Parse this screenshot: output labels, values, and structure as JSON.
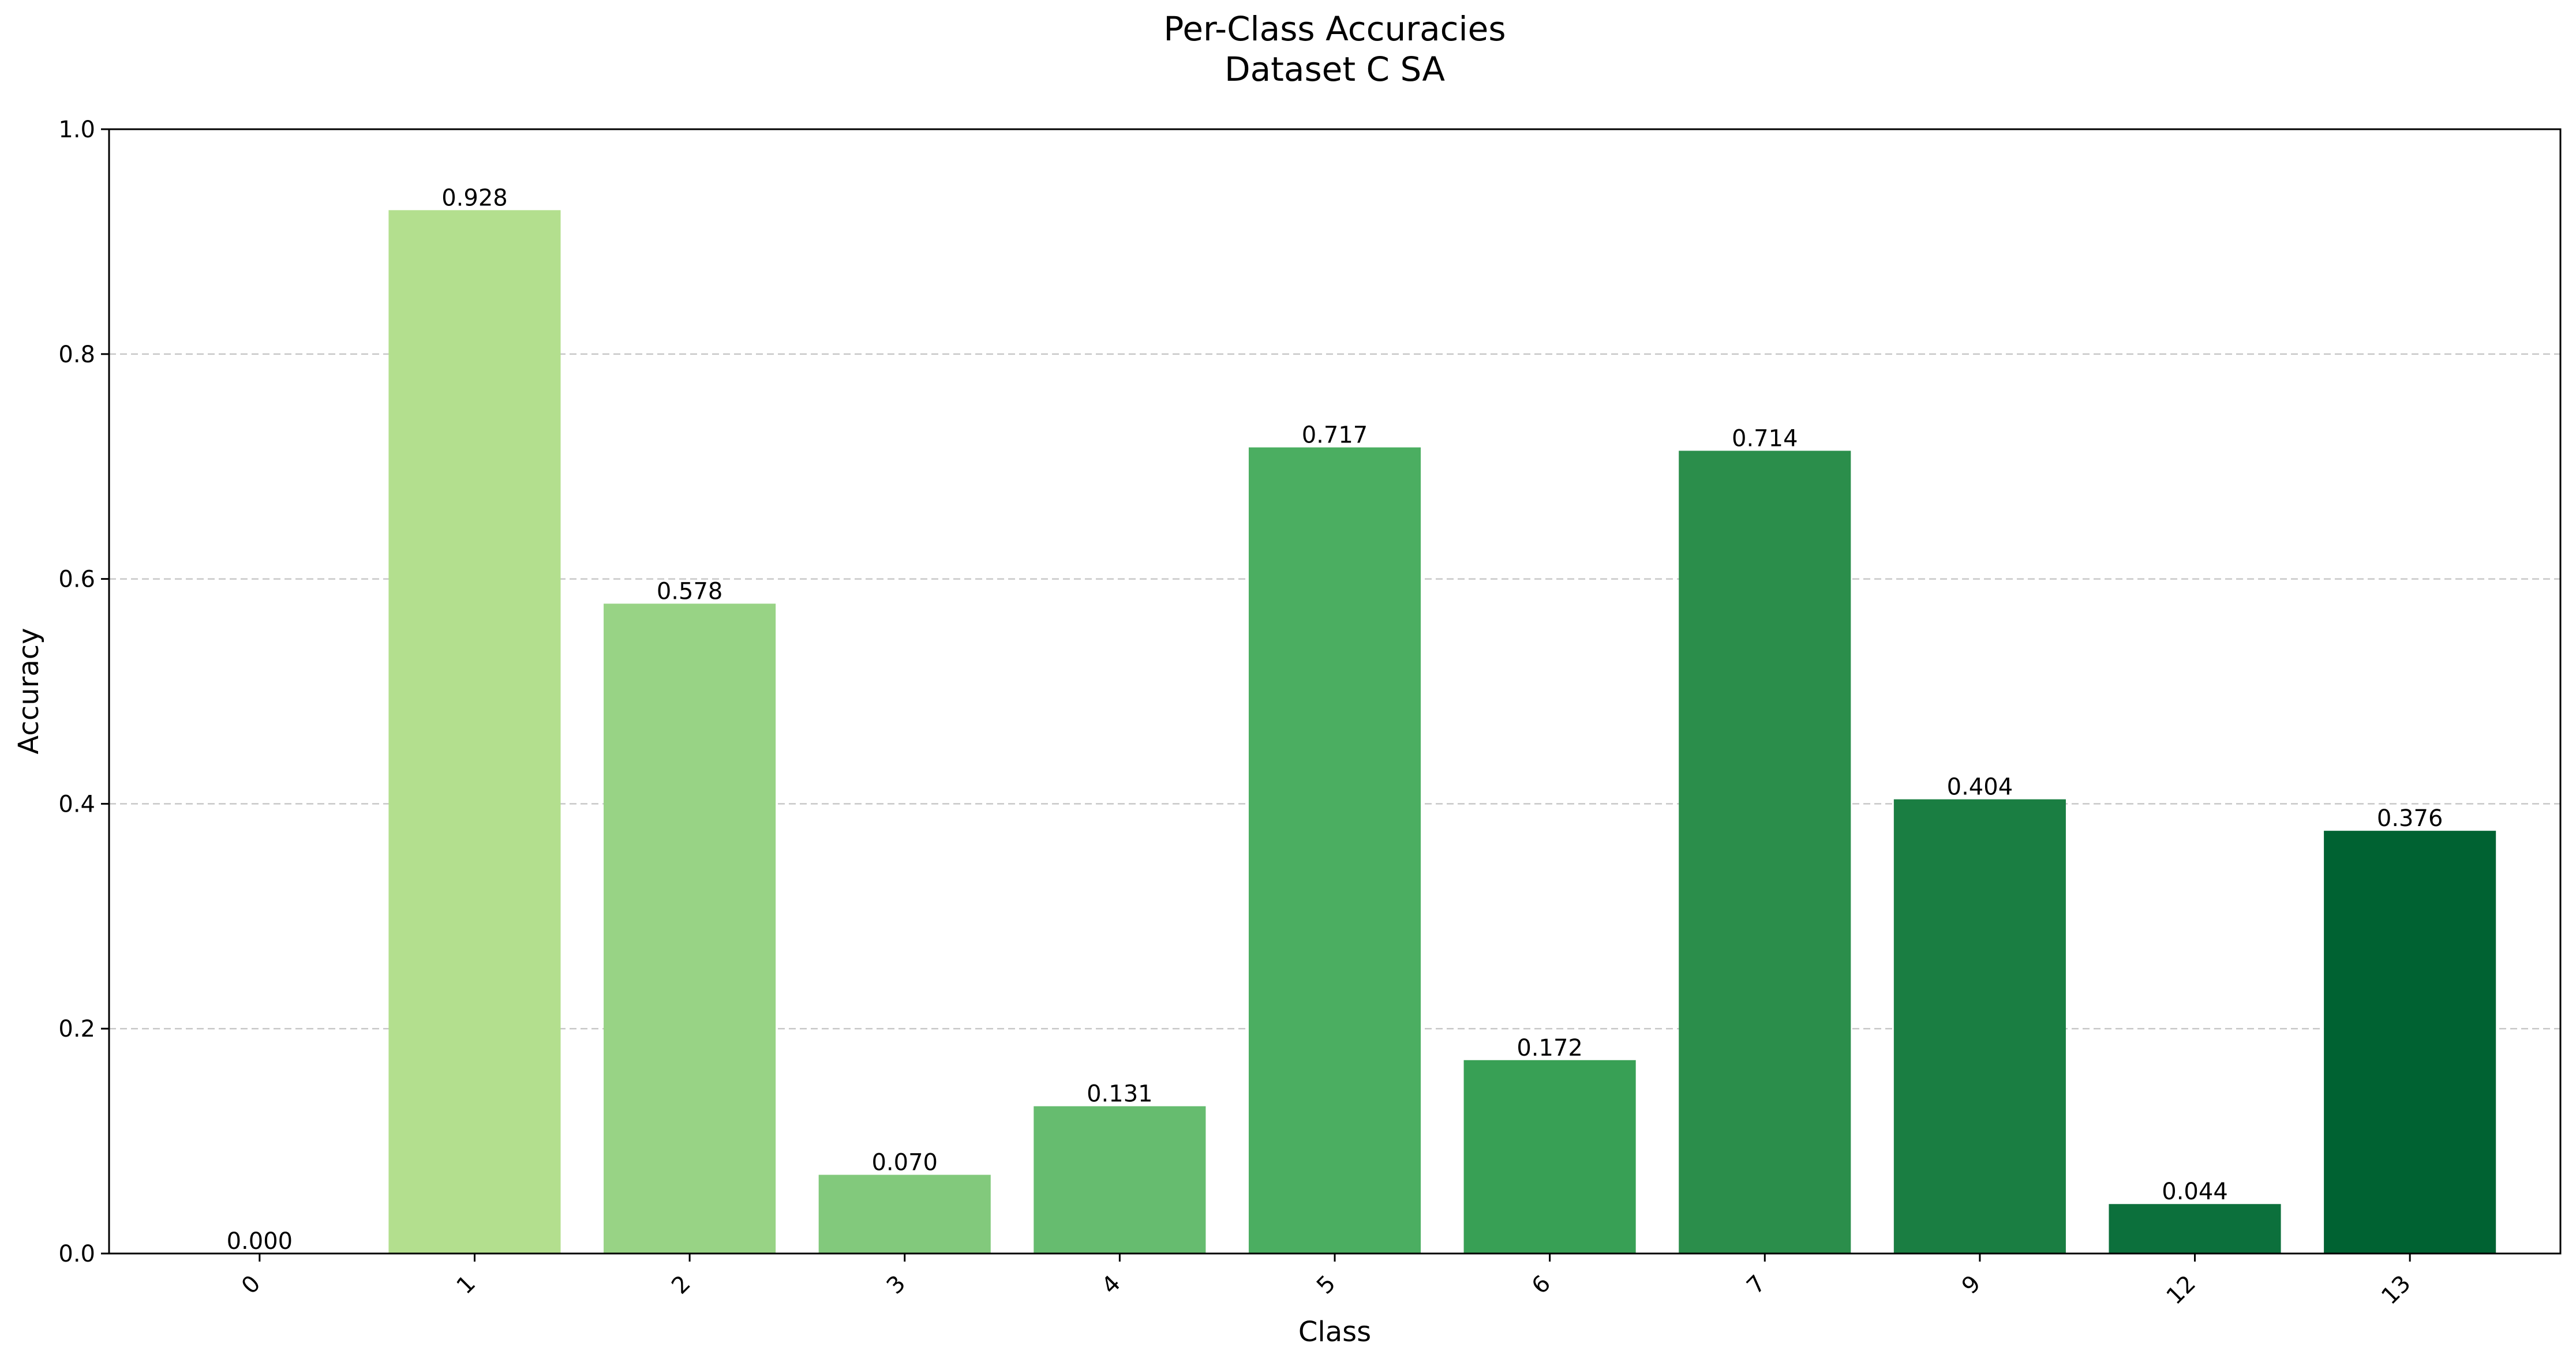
{
  "chart_data": {
    "type": "bar",
    "title": "Per-Class Accuracies",
    "subtitle": "Dataset C SA",
    "xlabel": "Class",
    "ylabel": "Accuracy",
    "ylim": [
      0,
      1.0
    ],
    "yticks": [
      0.0,
      0.2,
      0.4,
      0.6,
      0.8,
      1.0
    ],
    "ytick_labels": [
      "0.0",
      "0.2",
      "0.4",
      "0.6",
      "0.8",
      "1.0"
    ],
    "grid": "y-dashed",
    "categories": [
      "0",
      "1",
      "2",
      "3",
      "4",
      "5",
      "6",
      "7",
      "9",
      "12",
      "13"
    ],
    "values": [
      0.0,
      0.928,
      0.578,
      0.07,
      0.131,
      0.717,
      0.172,
      0.714,
      0.404,
      0.044,
      0.376
    ],
    "value_labels": [
      "0.000",
      "0.928",
      "0.578",
      "0.070",
      "0.131",
      "0.717",
      "0.172",
      "0.714",
      "0.404",
      "0.044",
      "0.376"
    ],
    "colors": [
      "#c7e9a8",
      "#b3df8e",
      "#98d385",
      "#82c97c",
      "#66bc6f",
      "#4bae61",
      "#38a055",
      "#2b8e4b",
      "#1a7e42",
      "#0c703c",
      "#006232"
    ]
  }
}
